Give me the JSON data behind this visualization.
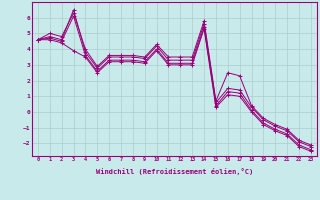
{
  "xlabel": "Windchill (Refroidissement éolien,°C)",
  "xlim": [
    -0.5,
    23.5
  ],
  "ylim": [
    -2.8,
    7.0
  ],
  "yticks": [
    -2,
    -1,
    0,
    1,
    2,
    3,
    4,
    5,
    6
  ],
  "xticks": [
    0,
    1,
    2,
    3,
    4,
    5,
    6,
    7,
    8,
    9,
    10,
    11,
    12,
    13,
    14,
    15,
    16,
    17,
    18,
    19,
    20,
    21,
    22,
    23
  ],
  "bg_color": "#c8eaea",
  "line_color": "#990077",
  "grid_color": "#aacccc",
  "lines": [
    [
      4.6,
      5.0,
      4.8,
      6.3,
      4.0,
      2.9,
      3.6,
      3.6,
      3.6,
      3.5,
      4.3,
      3.5,
      3.5,
      3.5,
      5.8,
      0.7,
      2.5,
      2.3,
      0.4,
      -0.4,
      -0.8,
      -1.1,
      -1.8,
      -2.1
    ],
    [
      4.6,
      4.8,
      4.6,
      6.5,
      3.8,
      2.8,
      3.5,
      3.5,
      3.5,
      3.4,
      4.2,
      3.3,
      3.3,
      3.3,
      5.6,
      0.6,
      1.5,
      1.4,
      0.3,
      -0.5,
      -0.9,
      -1.2,
      -1.9,
      -2.2
    ],
    [
      4.6,
      4.7,
      4.5,
      6.1,
      3.6,
      2.6,
      3.3,
      3.3,
      3.3,
      3.2,
      4.0,
      3.1,
      3.1,
      3.1,
      5.4,
      0.4,
      1.3,
      1.2,
      0.1,
      -0.7,
      -1.1,
      -1.4,
      -2.1,
      -2.4
    ],
    [
      4.6,
      4.6,
      4.4,
      3.9,
      3.5,
      2.5,
      3.2,
      3.2,
      3.2,
      3.1,
      3.9,
      3.0,
      3.0,
      3.0,
      5.3,
      0.3,
      1.1,
      1.0,
      0.0,
      -0.8,
      -1.2,
      -1.5,
      -2.2,
      -2.5
    ]
  ]
}
